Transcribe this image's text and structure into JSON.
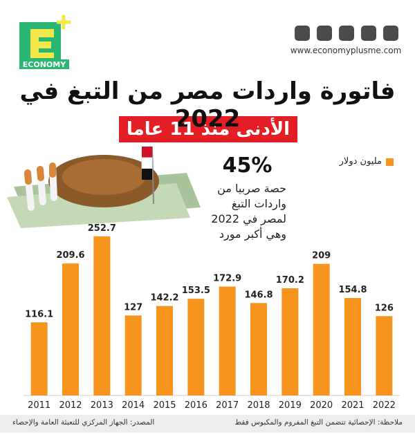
{
  "brand": {
    "logo": "ECONOMY",
    "website": "www.economyplusme.com"
  },
  "chart_data": {
    "type": "bar",
    "title": "فاتورة واردات مصر من التبغ في 2022",
    "subtitle": "الأدنى منذ 11 عاما",
    "legend_label": "مليون دولار",
    "annotation": {
      "headline": "45%",
      "text": "حصة صربيا من واردات التبغ لمصر في 2022 وهي أكبر مورد"
    },
    "categories": [
      "2011",
      "2012",
      "2013",
      "2014",
      "2015",
      "2016",
      "2017",
      "2018",
      "2019",
      "2020",
      "2021",
      "2022"
    ],
    "values": [
      116.1,
      209.6,
      252.7,
      127,
      142.2,
      153.5,
      172.9,
      146.8,
      170.2,
      209,
      154.8,
      126
    ],
    "color": "#f7941d",
    "ylim": [
      0,
      280
    ],
    "grid": false
  },
  "footer": {
    "source": "المصدر: الجهاز المركزي للتعبئة العامة والإحصاء",
    "note": "ملاحظة: الإحصائية تتضمن التبغ المفروم والمكبوس فقط"
  }
}
